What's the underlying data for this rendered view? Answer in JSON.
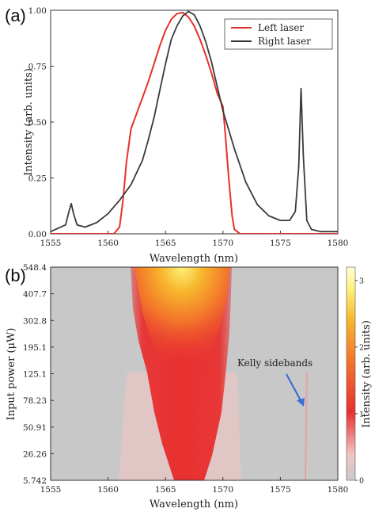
{
  "chart_data": [
    {
      "panel_label": "(a)",
      "type": "line",
      "xlabel": "Wavelength (nm)",
      "ylabel": "Intensity (arb. units)",
      "xlim": [
        1555,
        1580
      ],
      "ylim": [
        0,
        1.0
      ],
      "x_ticks": [
        "1555",
        "1560",
        "1565",
        "1570",
        "1575",
        "1580"
      ],
      "y_ticks": [
        "0.00",
        "0.25",
        "0.50",
        "0.75",
        "1.00"
      ],
      "legend_position": "top-right",
      "series": [
        {
          "name": "Left laser",
          "color": "#e8302a",
          "x": [
            1555,
            1560.5,
            1561.0,
            1561.3,
            1561.6,
            1562.0,
            1562.5,
            1563.0,
            1563.5,
            1564.0,
            1564.5,
            1565.0,
            1565.5,
            1566.0,
            1566.5,
            1567.0,
            1567.5,
            1568.0,
            1568.5,
            1569.0,
            1569.5,
            1570.0,
            1570.2,
            1570.5,
            1570.8,
            1571.0,
            1571.5,
            1580
          ],
          "y": [
            0,
            0,
            0.03,
            0.15,
            0.32,
            0.47,
            0.54,
            0.61,
            0.68,
            0.76,
            0.84,
            0.91,
            0.96,
            0.985,
            0.99,
            0.97,
            0.93,
            0.87,
            0.8,
            0.72,
            0.63,
            0.57,
            0.45,
            0.25,
            0.08,
            0.02,
            0,
            0
          ]
        },
        {
          "name": "Right laser",
          "color": "#3a3a3a",
          "x": [
            1555,
            1556.3,
            1556.6,
            1556.8,
            1557.0,
            1557.3,
            1558.0,
            1559.0,
            1560.0,
            1561.0,
            1562.0,
            1563.0,
            1563.5,
            1564.0,
            1564.5,
            1565.0,
            1565.5,
            1566.0,
            1566.5,
            1567.0,
            1567.5,
            1568.0,
            1568.5,
            1569.0,
            1569.5,
            1570.0,
            1571.0,
            1572.0,
            1573.0,
            1574.0,
            1575.0,
            1575.8,
            1576.3,
            1576.6,
            1576.8,
            1577.0,
            1577.3,
            1577.7,
            1578.5,
            1580
          ],
          "y": [
            0.01,
            0.04,
            0.1,
            0.135,
            0.09,
            0.04,
            0.03,
            0.05,
            0.09,
            0.15,
            0.22,
            0.33,
            0.42,
            0.52,
            0.64,
            0.76,
            0.87,
            0.93,
            0.975,
            0.995,
            0.98,
            0.93,
            0.86,
            0.77,
            0.66,
            0.55,
            0.38,
            0.23,
            0.13,
            0.08,
            0.06,
            0.06,
            0.1,
            0.3,
            0.65,
            0.35,
            0.06,
            0.02,
            0.01,
            0.01
          ]
        }
      ]
    },
    {
      "panel_label": "(b)",
      "type": "heatmap",
      "xlabel": "Wavelength (nm)",
      "ylabel": "Input power (μW)",
      "xlim": [
        1555,
        1580
      ],
      "x_ticks": [
        "1555",
        "1560",
        "1565",
        "1570",
        "1575",
        "1580"
      ],
      "y_ticks": [
        "5.742",
        "26.26",
        "50.91",
        "78.23",
        "125.1",
        "195.1",
        "302.8",
        "407.7",
        "548.4"
      ],
      "colorbar": {
        "label": "Intensity (arb. units)",
        "range": [
          0,
          3.2
        ],
        "ticks": [
          "0",
          "1",
          "2",
          "3"
        ],
        "colors": [
          "#c8c8c8",
          "#f2c4c4",
          "#e83030",
          "#f3722a",
          "#f7b52c",
          "#fff27a",
          "#ffffd8"
        ]
      },
      "annotation": {
        "text": "Kelly sidebands",
        "points_to_x": 1576.8,
        "arrow_color": "#3b6fd4"
      }
    }
  ]
}
